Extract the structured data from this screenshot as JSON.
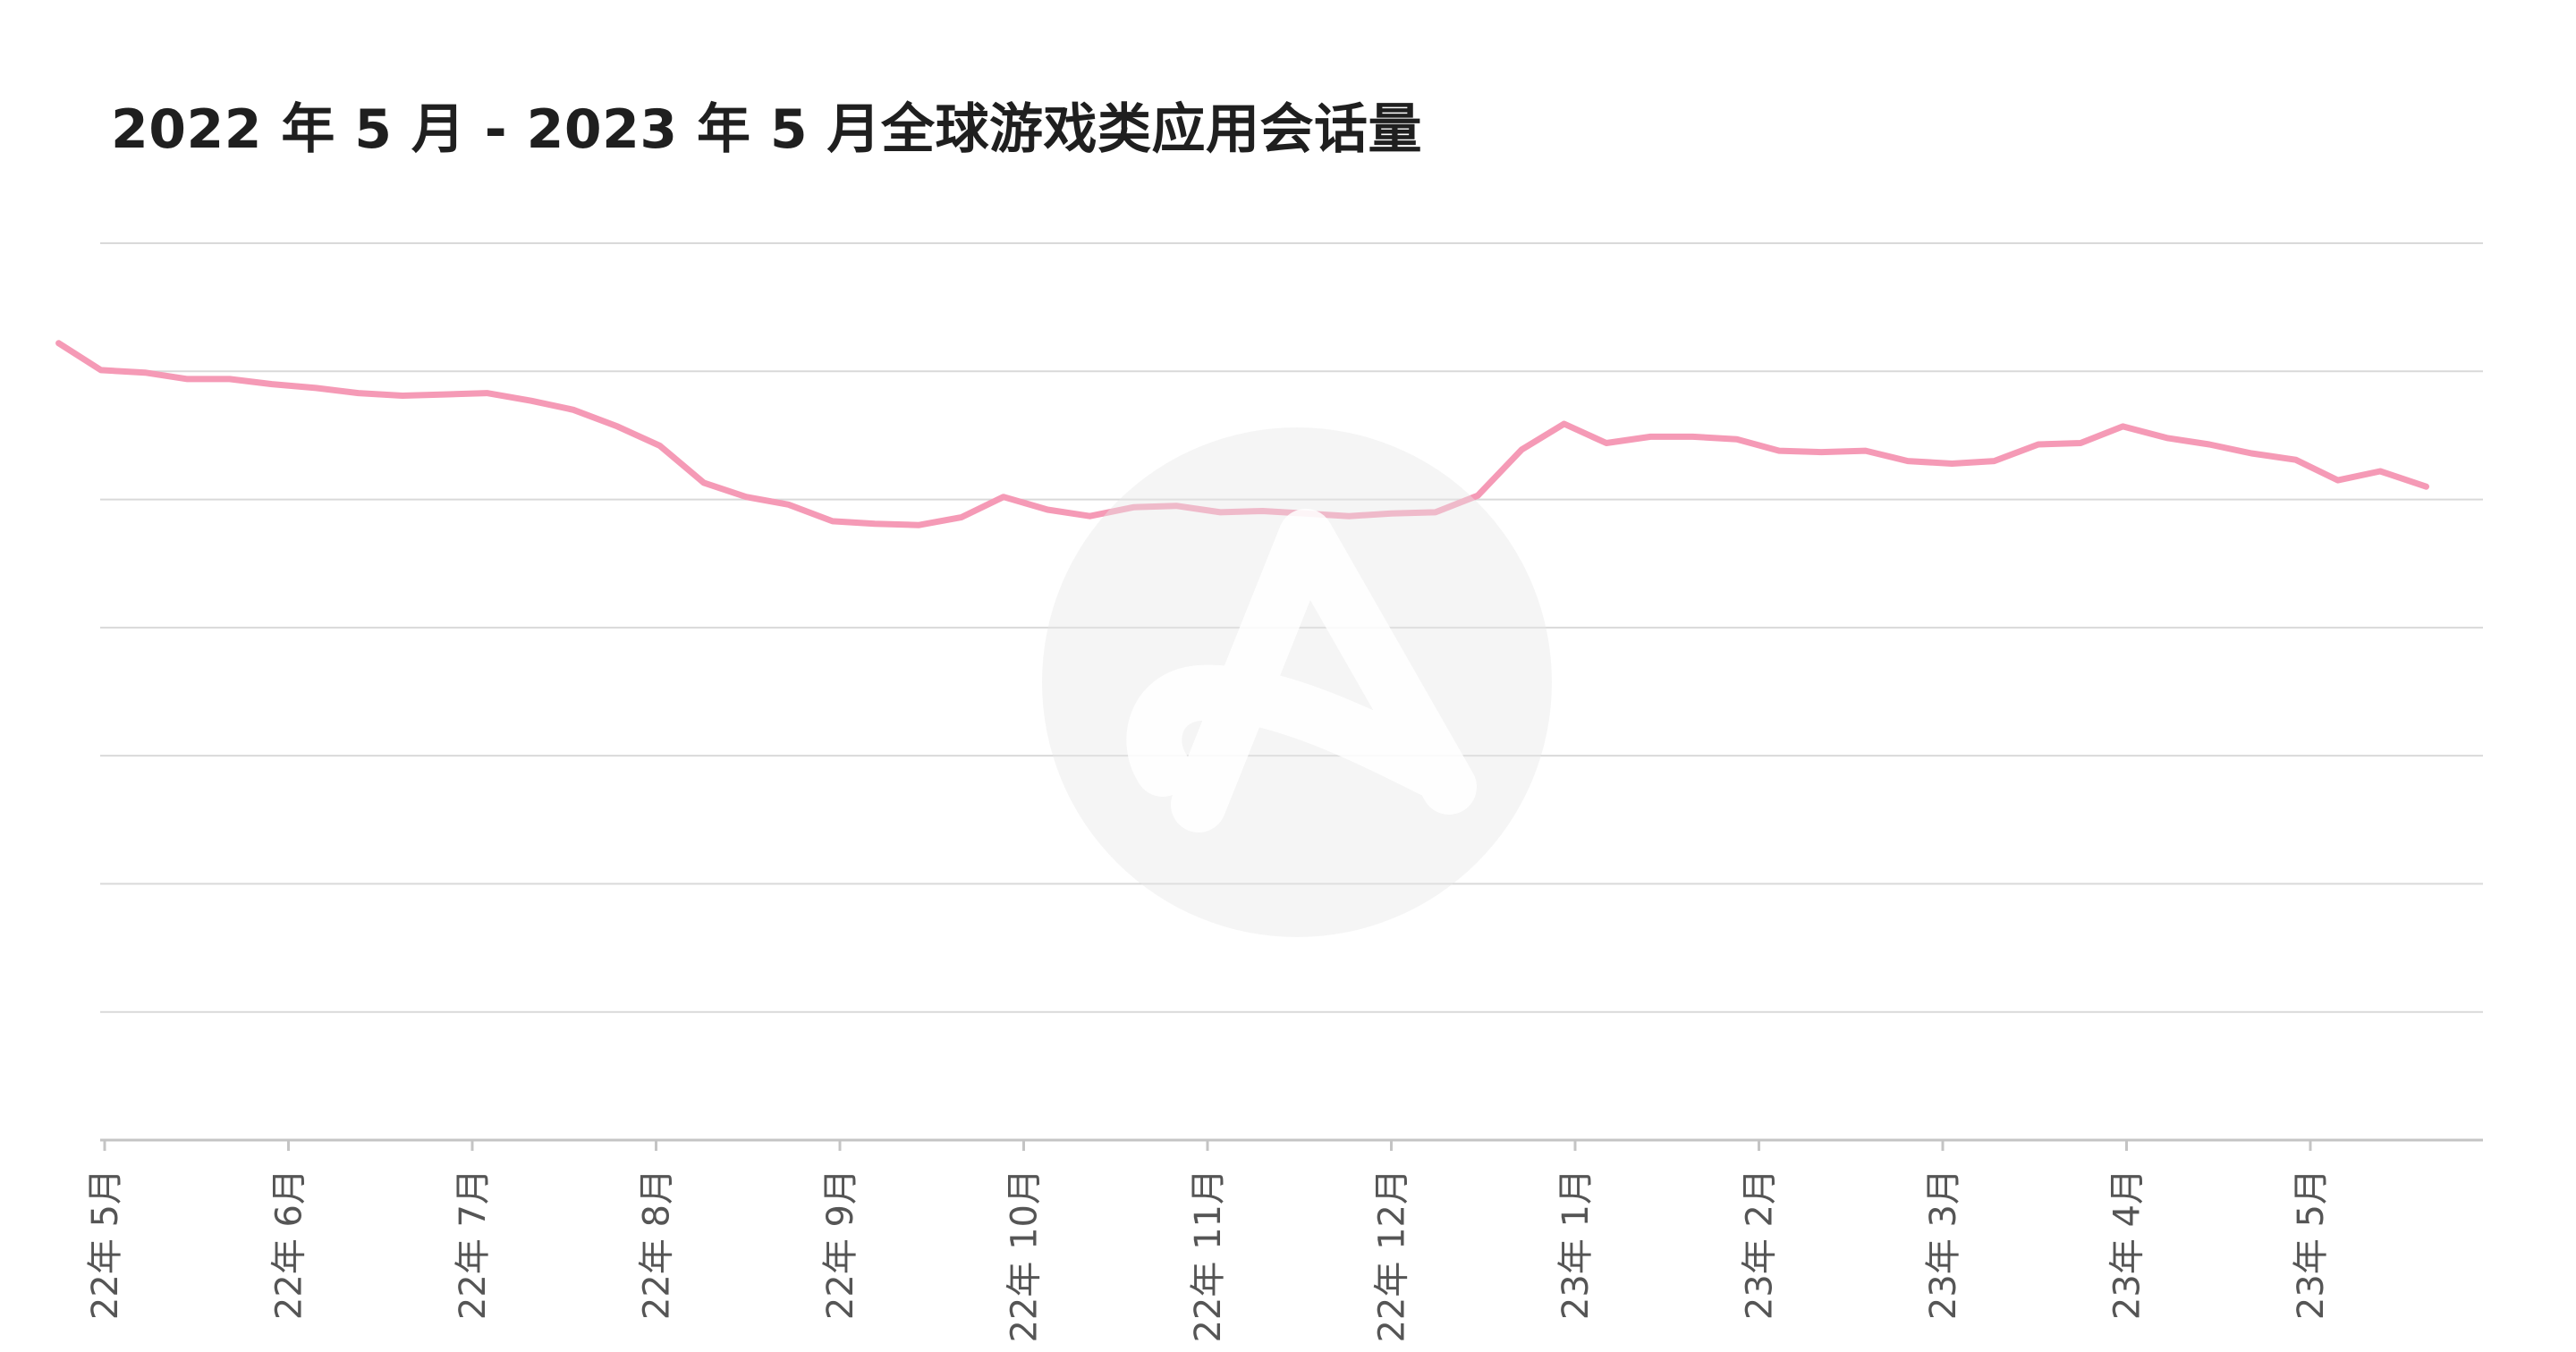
{
  "chart_data": {
    "type": "line",
    "title": "2022 年 5 月 - 2023 年 5 月全球游戏类应用会话量",
    "xlabel": "",
    "ylabel": "",
    "categories": [
      "22年 5月",
      "22年 6月",
      "22年 7月",
      "22年 8月",
      "22年 9月",
      "22年 10月",
      "22年 11月",
      "22年 12月",
      "23年 1月",
      "23年 2月",
      "23年 3月",
      "23年 4月",
      "23年 5月"
    ],
    "gridlines": 8,
    "grid": true,
    "legend": "none",
    "ylim": [
      0,
      7
    ],
    "series": [
      {
        "color": "#f59ab6",
        "x": [
          -0.25,
          -0.02,
          0.22,
          0.45,
          0.68,
          0.91,
          1.15,
          1.38,
          1.62,
          1.85,
          2.08,
          2.32,
          2.55,
          2.79,
          3.02,
          3.26,
          3.49,
          3.72,
          3.96,
          4.19,
          4.43,
          4.66,
          4.89,
          5.13,
          5.36,
          5.6,
          5.83,
          6.07,
          6.3,
          6.53,
          6.77,
          7.0,
          7.24,
          7.47,
          7.71,
          7.94,
          8.17,
          8.41,
          8.64,
          8.88,
          9.11,
          9.34,
          9.58,
          9.81,
          10.05,
          10.28,
          10.52,
          10.75,
          10.98,
          11.22,
          11.45,
          11.68,
          11.92,
          12.15,
          12.38,
          12.63
        ],
        "values": [
          6.22,
          6.01,
          5.99,
          5.94,
          5.94,
          5.9,
          5.87,
          5.83,
          5.81,
          5.82,
          5.83,
          5.77,
          5.7,
          5.57,
          5.42,
          5.13,
          5.02,
          4.96,
          4.83,
          4.81,
          4.8,
          4.86,
          5.02,
          4.92,
          4.87,
          4.94,
          4.95,
          4.9,
          4.91,
          4.89,
          4.87,
          4.89,
          4.9,
          5.03,
          5.39,
          5.59,
          5.44,
          5.49,
          5.49,
          5.47,
          5.38,
          5.37,
          5.38,
          5.3,
          5.28,
          5.3,
          5.43,
          5.44,
          5.57,
          5.48,
          5.43,
          5.36,
          5.31,
          5.15,
          5.22,
          5.1
        ]
      }
    ]
  }
}
